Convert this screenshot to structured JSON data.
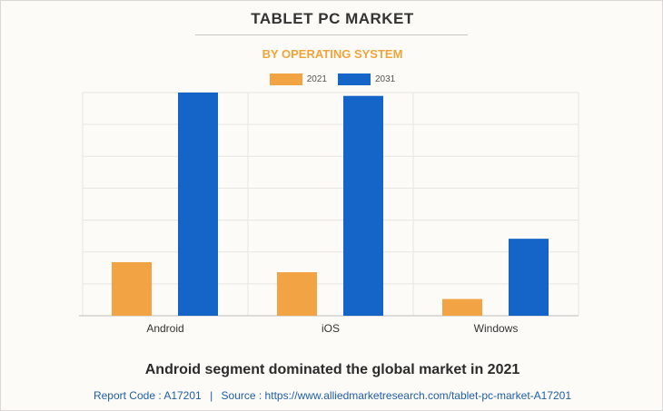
{
  "header": {
    "title": "TABLET PC MARKET",
    "subtitle": "BY OPERATING SYSTEM"
  },
  "colors": {
    "series_2021": "#f2a444",
    "series_2031": "#1565c8",
    "subtitle": "#f0a53c",
    "grid": "#e6e6e6"
  },
  "chart_data": {
    "type": "bar",
    "categories": [
      "Android",
      "iOS",
      "Windows"
    ],
    "series": [
      {
        "name": "2021",
        "values": [
          24,
          19.5,
          7.5
        ]
      },
      {
        "name": "2031",
        "values": [
          100,
          98.5,
          34.5
        ]
      }
    ],
    "ylim": [
      0,
      100
    ],
    "grid": true,
    "legend": "top-center",
    "y_tick_labels_visible": false
  },
  "footer": {
    "headline": "Android segment dominated the global market in 2021",
    "report_code": "Report Code : A17201",
    "separator": "|",
    "source": "Source : https://www.alliedmarketresearch.com/tablet-pc-market-A17201"
  }
}
